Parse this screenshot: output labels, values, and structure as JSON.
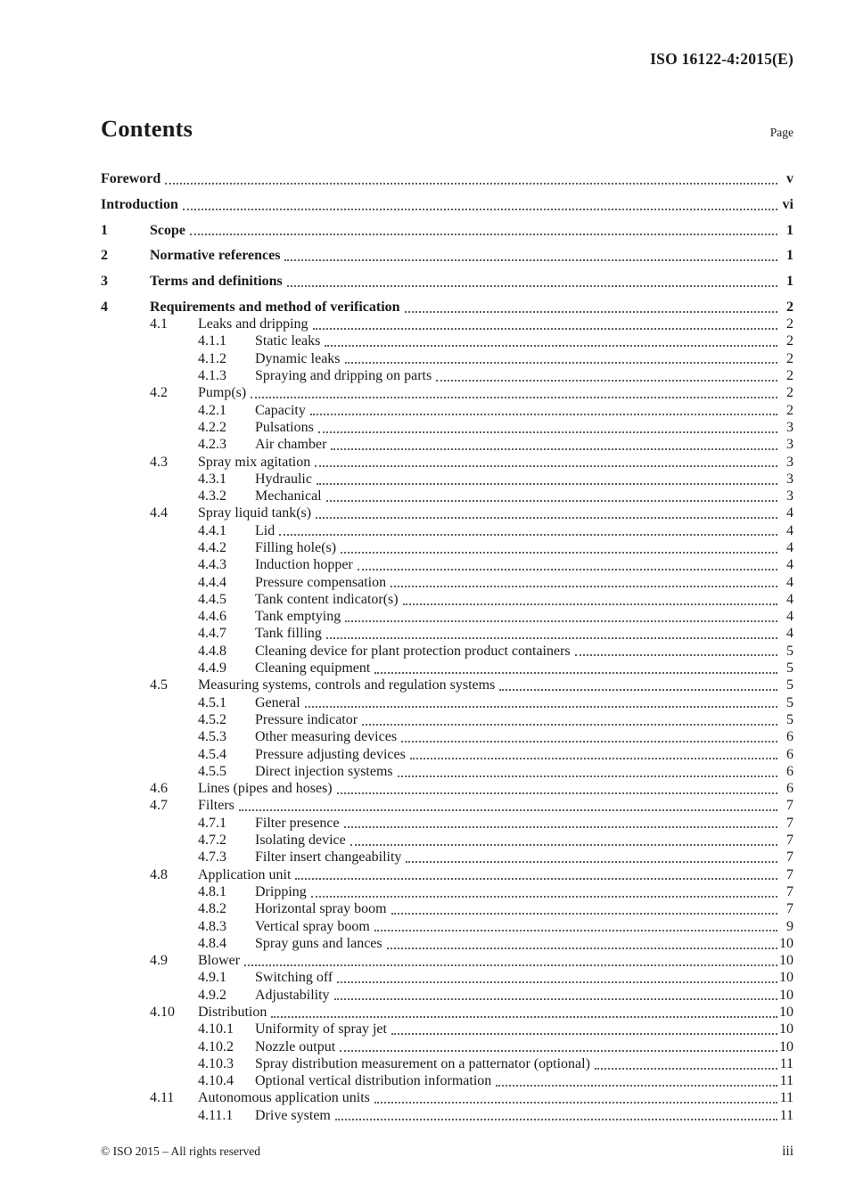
{
  "header": {
    "doc_ref": "ISO 16122-4:2015(E)"
  },
  "contents": {
    "title": "Contents",
    "page_label": "Page"
  },
  "toc": [
    {
      "level": 0,
      "num": "",
      "title": "Foreword",
      "page": "v",
      "bold": true
    },
    {
      "level": 0,
      "num": "",
      "title": "Introduction",
      "page": "vi",
      "bold": true
    },
    {
      "level": 1,
      "num": "1",
      "title": "Scope",
      "page": "1",
      "bold": true
    },
    {
      "level": 1,
      "num": "2",
      "title": "Normative references",
      "page": "1",
      "bold": true
    },
    {
      "level": 1,
      "num": "3",
      "title": "Terms and definitions",
      "page": "1",
      "bold": true
    },
    {
      "level": 1,
      "num": "4",
      "title": "Requirements and method of verification",
      "page": "2",
      "bold": true
    },
    {
      "level": 2,
      "num": "4.1",
      "title": "Leaks and dripping",
      "page": "2",
      "bold": false
    },
    {
      "level": 3,
      "num": "4.1.1",
      "title": "Static leaks",
      "page": "2",
      "bold": false
    },
    {
      "level": 3,
      "num": "4.1.2",
      "title": "Dynamic leaks",
      "page": "2",
      "bold": false
    },
    {
      "level": 3,
      "num": "4.1.3",
      "title": "Spraying and dripping on parts",
      "page": "2",
      "bold": false
    },
    {
      "level": 2,
      "num": "4.2",
      "title": "Pump(s)",
      "page": "2",
      "bold": false
    },
    {
      "level": 3,
      "num": "4.2.1",
      "title": "Capacity",
      "page": "2",
      "bold": false
    },
    {
      "level": 3,
      "num": "4.2.2",
      "title": "Pulsations",
      "page": "3",
      "bold": false
    },
    {
      "level": 3,
      "num": "4.2.3",
      "title": "Air chamber",
      "page": "3",
      "bold": false
    },
    {
      "level": 2,
      "num": "4.3",
      "title": "Spray mix agitation",
      "page": "3",
      "bold": false
    },
    {
      "level": 3,
      "num": "4.3.1",
      "title": "Hydraulic",
      "page": "3",
      "bold": false
    },
    {
      "level": 3,
      "num": "4.3.2",
      "title": "Mechanical",
      "page": "3",
      "bold": false
    },
    {
      "level": 2,
      "num": "4.4",
      "title": "Spray liquid tank(s)",
      "page": "4",
      "bold": false
    },
    {
      "level": 3,
      "num": "4.4.1",
      "title": "Lid",
      "page": "4",
      "bold": false
    },
    {
      "level": 3,
      "num": "4.4.2",
      "title": "Filling hole(s)",
      "page": "4",
      "bold": false
    },
    {
      "level": 3,
      "num": "4.4.3",
      "title": "Induction hopper",
      "page": "4",
      "bold": false
    },
    {
      "level": 3,
      "num": "4.4.4",
      "title": "Pressure compensation",
      "page": "4",
      "bold": false
    },
    {
      "level": 3,
      "num": "4.4.5",
      "title": "Tank content indicator(s)",
      "page": "4",
      "bold": false
    },
    {
      "level": 3,
      "num": "4.4.6",
      "title": "Tank emptying",
      "page": "4",
      "bold": false
    },
    {
      "level": 3,
      "num": "4.4.7",
      "title": "Tank filling",
      "page": "4",
      "bold": false
    },
    {
      "level": 3,
      "num": "4.4.8",
      "title": "Cleaning device for plant protection product containers",
      "page": "5",
      "bold": false
    },
    {
      "level": 3,
      "num": "4.4.9",
      "title": "Cleaning equipment",
      "page": "5",
      "bold": false
    },
    {
      "level": 2,
      "num": "4.5",
      "title": "Measuring systems, controls and regulation systems",
      "page": "5",
      "bold": false
    },
    {
      "level": 3,
      "num": "4.5.1",
      "title": "General",
      "page": "5",
      "bold": false
    },
    {
      "level": 3,
      "num": "4.5.2",
      "title": "Pressure indicator",
      "page": "5",
      "bold": false
    },
    {
      "level": 3,
      "num": "4.5.3",
      "title": "Other measuring devices",
      "page": "6",
      "bold": false
    },
    {
      "level": 3,
      "num": "4.5.4",
      "title": "Pressure adjusting devices",
      "page": "6",
      "bold": false
    },
    {
      "level": 3,
      "num": "4.5.5",
      "title": "Direct injection systems",
      "page": "6",
      "bold": false
    },
    {
      "level": 2,
      "num": "4.6",
      "title": "Lines (pipes and hoses)",
      "page": "6",
      "bold": false
    },
    {
      "level": 2,
      "num": "4.7",
      "title": "Filters",
      "page": "7",
      "bold": false
    },
    {
      "level": 3,
      "num": "4.7.1",
      "title": "Filter presence",
      "page": "7",
      "bold": false
    },
    {
      "level": 3,
      "num": "4.7.2",
      "title": "Isolating device",
      "page": "7",
      "bold": false
    },
    {
      "level": 3,
      "num": "4.7.3",
      "title": "Filter insert changeability",
      "page": "7",
      "bold": false
    },
    {
      "level": 2,
      "num": "4.8",
      "title": "Application unit",
      "page": "7",
      "bold": false
    },
    {
      "level": 3,
      "num": "4.8.1",
      "title": "Dripping",
      "page": "7",
      "bold": false
    },
    {
      "level": 3,
      "num": "4.8.2",
      "title": "Horizontal spray boom",
      "page": "7",
      "bold": false
    },
    {
      "level": 3,
      "num": "4.8.3",
      "title": "Vertical spray boom",
      "page": "9",
      "bold": false
    },
    {
      "level": 3,
      "num": "4.8.4",
      "title": "Spray guns and lances",
      "page": "10",
      "bold": false
    },
    {
      "level": 2,
      "num": "4.9",
      "title": "Blower",
      "page": "10",
      "bold": false
    },
    {
      "level": 3,
      "num": "4.9.1",
      "title": "Switching off",
      "page": "10",
      "bold": false
    },
    {
      "level": 3,
      "num": "4.9.2",
      "title": "Adjustability",
      "page": "10",
      "bold": false
    },
    {
      "level": 2,
      "num": "4.10",
      "title": "Distribution",
      "page": "10",
      "bold": false
    },
    {
      "level": 3,
      "num": "4.10.1",
      "title": "Uniformity of spray jet",
      "page": "10",
      "bold": false
    },
    {
      "level": 3,
      "num": "4.10.2",
      "title": "Nozzle output",
      "page": "10",
      "bold": false
    },
    {
      "level": 3,
      "num": "4.10.3",
      "title": "Spray distribution measurement on a patternator (optional)",
      "page": "11",
      "bold": false
    },
    {
      "level": 3,
      "num": "4.10.4",
      "title": "Optional vertical distribution information",
      "page": "11",
      "bold": false
    },
    {
      "level": 2,
      "num": "4.11",
      "title": "Autonomous application units",
      "page": "11",
      "bold": false
    },
    {
      "level": 3,
      "num": "4.11.1",
      "title": "Drive system",
      "page": "11",
      "bold": false
    }
  ],
  "footer": {
    "copyright": "© ISO 2015 – All rights reserved",
    "page_number": "iii"
  }
}
